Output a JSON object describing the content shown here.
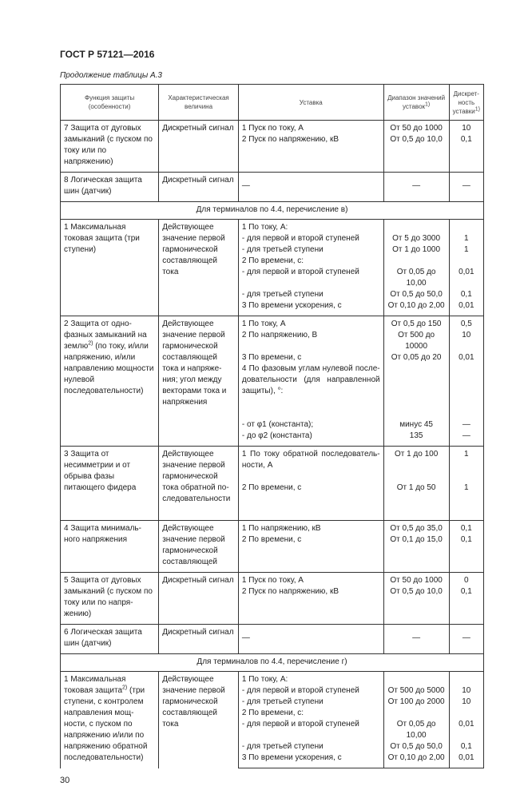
{
  "header": {
    "title": "ГОСТ Р 57121—2016",
    "continuation": "Продолжение таблицы А.3",
    "page_number": "30"
  },
  "table": {
    "columns": [
      "Функция защиты (особенности)",
      "Характеристическая величина",
      "Уставка",
      "Диапазон значений уставок",
      "Дискрет-ность уставки"
    ],
    "footnote_mark": "1)",
    "rows": [
      {
        "func": "7 Защита от дуговых замыканий (с пуском по току или по напряжению)",
        "char": "Дискретный сигнал",
        "lines": [
          [
            "1 Пуск по току, А",
            "От 50 до 1000",
            "10"
          ],
          [
            "2 Пуск по напряжению, кВ",
            "От 0,5 до 10,0",
            "0,1"
          ],
          [
            "",
            "",
            ""
          ],
          [
            "",
            "",
            ""
          ]
        ]
      },
      {
        "func": "8 Логическая защита шин (датчик)",
        "char": "Дискретный сигнал",
        "dash": "—",
        "lines": [
          [
            "—",
            "—",
            "—"
          ]
        ]
      },
      {
        "section": "Для терминалов по 4.4, перечисление в)"
      },
      {
        "func": "1 Максимальная токовая защита (три ступени)",
        "char": "Действующее значение первой гармонической составляющей тока",
        "lines": [
          [
            "1 По току, А:",
            "",
            ""
          ],
          [
            "- для первой и второй ступеней",
            "От 5 до 3000",
            "1"
          ],
          [
            "- для третьей ступени",
            "От 1 до 1000",
            "1"
          ],
          [
            "2 По времени, с:",
            "",
            ""
          ],
          [
            "- для первой и второй ступеней",
            "От 0,05 до 10,00",
            "0,01"
          ],
          [
            "- для третьей ступени",
            "От 0,5 до 50,0",
            "0,1"
          ],
          [
            "3 По времени ускорения, с",
            "От 0,10 до 2,00",
            "0,01"
          ]
        ]
      },
      {
        "func": "2 Защита от одно-фазных замыканий на землю",
        "func_sup": "2)",
        "func_tail": " (по току, и/или напряжению, и/или направлению мощности нулевой последовательности)",
        "char": "Действующее значение первой гармонической составляющей тока и напряже-ния; угол между векторами тока и напряжения",
        "lines": [
          [
            "1 По току, А",
            "От 0,5 до 150",
            "0,5"
          ],
          [
            "2 По напряжению, В",
            "От 500 до 10000",
            "10"
          ],
          [
            "3 По времени, с",
            "От 0,05 до 20",
            "0,01"
          ],
          [
            "4 По фазовым углам нулевой после-довательности (для направленной защиты), °:",
            "",
            ""
          ],
          [
            "",
            "",
            ""
          ],
          [
            "",
            "",
            ""
          ],
          [
            "- от φ1 (константа);",
            "минус 45",
            "—"
          ],
          [
            "- до φ2 (константа)",
            "135",
            "—"
          ]
        ]
      },
      {
        "func": "3 Защита от несимметрии и от обрыва фазы питающего фидера",
        "char": "Действующее значение первой гармонической тока обратной по-следовательности",
        "lines": [
          [
            "1 По току обратной последователь-ности, А",
            "От 1 до 100",
            "1"
          ],
          [
            "",
            "",
            ""
          ],
          [
            "2 По времени, с",
            "От 1 до 50",
            "1"
          ],
          [
            "",
            "",
            ""
          ],
          [
            "",
            "",
            ""
          ]
        ]
      },
      {
        "func": "4 Защита минималь-ного напряжения",
        "char": "Действующее значение первой гармонической составляющей",
        "lines": [
          [
            "1 По напряжению, кВ",
            "От 0,5 до 35,0",
            "0,1"
          ],
          [
            "2 По времени, с",
            "От 0,1 до 15,0",
            "0,1"
          ],
          [
            "",
            "",
            ""
          ],
          [
            "",
            "",
            ""
          ]
        ]
      },
      {
        "func": "5 Защита от дуговых замыканий (с пуском по току или по напря-жению)",
        "char": "Дискретный сигнал",
        "lines": [
          [
            "1 Пуск по току, А",
            "От 50 до 1000",
            "0"
          ],
          [
            "2 Пуск по напряжению, кВ",
            "От 0,5 до 10,0",
            "0,1"
          ],
          [
            "",
            "",
            ""
          ],
          [
            "",
            "",
            ""
          ]
        ]
      },
      {
        "func": "6 Логическая защита шин (датчик)",
        "char": "Дискретный сигнал",
        "dash": "—",
        "lines": [
          [
            "—",
            "—",
            "—"
          ]
        ]
      },
      {
        "section": "Для терминалов по 4.4, перечисление г)"
      },
      {
        "func": "1 Максимальная токовая защита",
        "func_sup": "2)",
        "func_tail": " (три ступени, с контролем направления мощ-ности, с пуском по напряжению и/или по напряжению обратной последовательности)",
        "char": "Действующее значение первой гармонической составляющей тока",
        "lines": [
          [
            "1 По току, А:",
            "",
            ""
          ],
          [
            "- для первой и второй ступеней",
            "От 500 до 5000",
            "10"
          ],
          [
            "- для третьей ступени",
            "От 100 до 2000",
            "10"
          ],
          [
            "2 По времени, с:",
            "",
            ""
          ],
          [
            "- для первой и второй ступеней",
            "От 0,05 до 10,00",
            "0,01"
          ],
          [
            "- для третьей ступени",
            "От 0,5 до 50,0",
            "0,1"
          ],
          [
            "3 По времени ускорения, с",
            "От 0,10 до 2,00",
            "0,01"
          ]
        ]
      }
    ]
  }
}
